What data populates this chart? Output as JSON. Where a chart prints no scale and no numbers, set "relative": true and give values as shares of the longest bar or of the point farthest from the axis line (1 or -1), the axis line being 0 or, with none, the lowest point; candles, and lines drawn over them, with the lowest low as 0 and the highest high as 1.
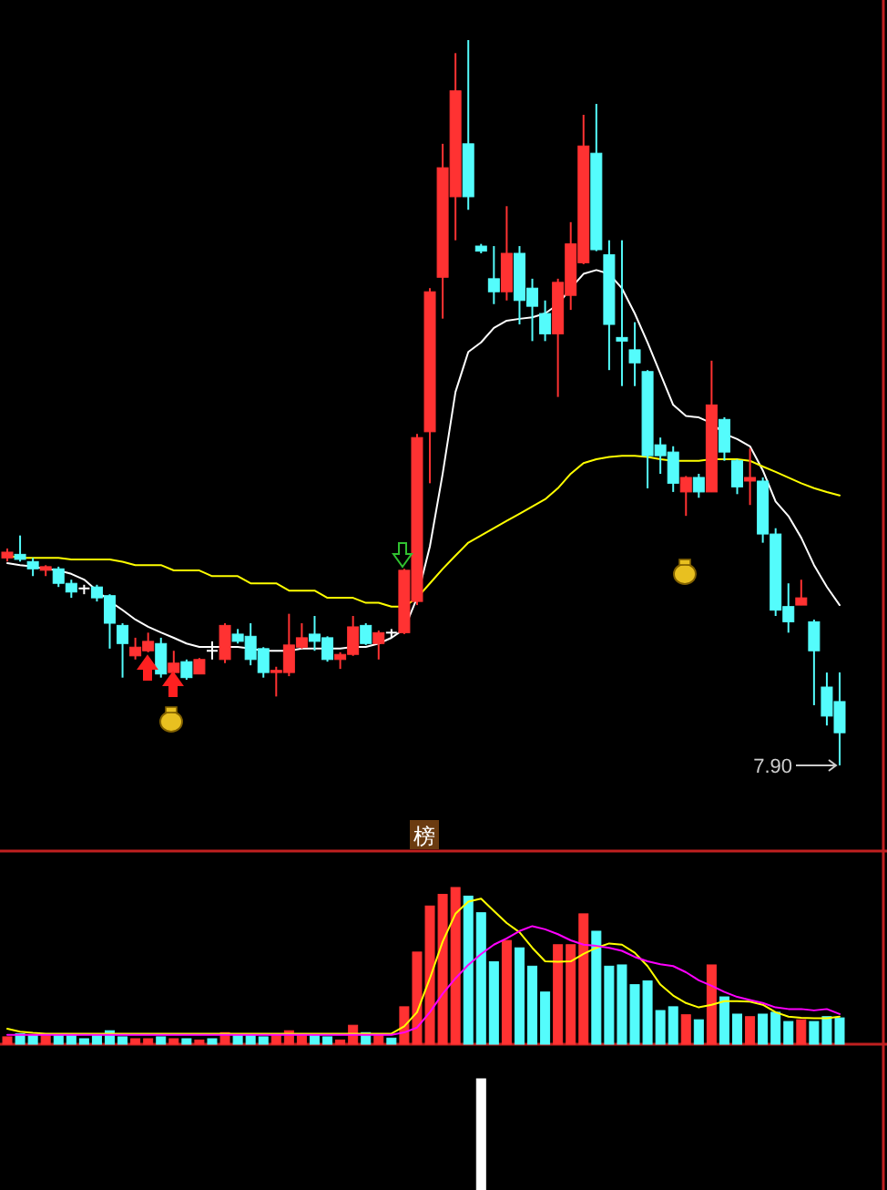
{
  "chart_data": [
    {
      "type": "candlestick",
      "relative": true,
      "categories": [
        null,
        null,
        null,
        null,
        null,
        null,
        null,
        null,
        null,
        null,
        null,
        null,
        null,
        null,
        null,
        null,
        null,
        null,
        null,
        null,
        null,
        null,
        null,
        null,
        null,
        null,
        null,
        null,
        null,
        null,
        null,
        null,
        null,
        null,
        null,
        null,
        null,
        null,
        null,
        null,
        null,
        null,
        null,
        null,
        null,
        null,
        null,
        null,
        null,
        null,
        null,
        null,
        null,
        null,
        null,
        null,
        null,
        null,
        null,
        null,
        null,
        null,
        null,
        null,
        null,
        null
      ],
      "ohlc": [
        [
          0.286,
          0.299,
          0.281,
          0.294
        ],
        [
          0.291,
          0.317,
          0.281,
          0.284
        ],
        [
          0.281,
          0.286,
          0.261,
          0.271
        ],
        [
          0.269,
          0.276,
          0.261,
          0.274
        ],
        [
          0.271,
          0.274,
          0.246,
          0.251
        ],
        [
          0.251,
          0.256,
          0.231,
          0.239
        ],
        [
          0.244,
          0.249,
          0.236,
          0.244
        ],
        [
          0.246,
          0.249,
          0.226,
          0.231
        ],
        [
          0.234,
          0.236,
          0.161,
          0.196
        ],
        [
          0.193,
          0.196,
          0.121,
          0.168
        ],
        [
          0.151,
          0.176,
          0.146,
          0.163
        ],
        [
          0.158,
          0.183,
          0.156,
          0.171
        ],
        [
          0.168,
          0.176,
          0.121,
          0.126
        ],
        [
          0.128,
          0.158,
          0.126,
          0.141
        ],
        [
          0.143,
          0.146,
          0.118,
          0.121
        ],
        [
          0.126,
          0.148,
          0.126,
          0.146
        ],
        [
          0.158,
          0.171,
          0.146,
          0.158
        ],
        [
          0.146,
          0.196,
          0.141,
          0.193
        ],
        [
          0.181,
          0.188,
          0.168,
          0.171
        ],
        [
          0.178,
          0.196,
          0.138,
          0.146
        ],
        [
          0.161,
          0.163,
          0.121,
          0.128
        ],
        [
          0.128,
          0.136,
          0.095,
          0.131
        ],
        [
          0.128,
          0.209,
          0.123,
          0.166
        ],
        [
          0.163,
          0.196,
          0.161,
          0.176
        ],
        [
          0.181,
          0.206,
          0.158,
          0.171
        ],
        [
          0.176,
          0.178,
          0.143,
          0.146
        ],
        [
          0.146,
          0.156,
          0.133,
          0.153
        ],
        [
          0.153,
          0.206,
          0.151,
          0.191
        ],
        [
          0.193,
          0.196,
          0.166,
          0.168
        ],
        [
          0.168,
          0.186,
          0.146,
          0.183
        ],
        [
          0.183,
          0.188,
          0.176,
          0.183
        ],
        [
          0.183,
          0.271,
          0.181,
          0.269
        ],
        [
          0.226,
          0.457,
          0.221,
          0.452
        ],
        [
          0.46,
          0.658,
          0.389,
          0.653
        ],
        [
          0.673,
          0.857,
          0.616,
          0.824
        ],
        [
          0.784,
          0.982,
          0.724,
          0.93
        ],
        [
          0.857,
          1,
          0.766,
          0.784
        ],
        [
          0.716,
          0.719,
          0.706,
          0.709
        ],
        [
          0.671,
          0.716,
          0.636,
          0.653
        ],
        [
          0.653,
          0.771,
          0.641,
          0.706
        ],
        [
          0.706,
          0.716,
          0.608,
          0.641
        ],
        [
          0.658,
          0.671,
          0.585,
          0.633
        ],
        [
          0.623,
          0.641,
          0.585,
          0.595
        ],
        [
          0.595,
          0.671,
          0.508,
          0.666
        ],
        [
          0.648,
          0.749,
          0.628,
          0.719
        ],
        [
          0.693,
          0.897,
          0.691,
          0.854
        ],
        [
          0.844,
          0.912,
          0.709,
          0.711
        ],
        [
          0.704,
          0.724,
          0.545,
          0.608
        ],
        [
          0.59,
          0.724,
          0.523,
          0.585
        ],
        [
          0.573,
          0.611,
          0.523,
          0.555
        ],
        [
          0.543,
          0.545,
          0.382,
          0.427
        ],
        [
          0.442,
          0.452,
          0.402,
          0.427
        ],
        [
          0.432,
          0.44,
          0.377,
          0.389
        ],
        [
          0.377,
          0.399,
          0.344,
          0.397
        ],
        [
          0.397,
          0.402,
          0.369,
          0.377
        ],
        [
          0.377,
          0.558,
          0.377,
          0.497
        ],
        [
          0.477,
          0.48,
          0.42,
          0.432
        ],
        [
          0.42,
          0.422,
          0.374,
          0.384
        ],
        [
          0.392,
          0.437,
          0.359,
          0.397
        ],
        [
          0.392,
          0.397,
          0.307,
          0.319
        ],
        [
          0.319,
          0.327,
          0.206,
          0.214
        ],
        [
          0.219,
          0.251,
          0.183,
          0.198
        ],
        [
          0.221,
          0.256,
          0.221,
          0.231
        ],
        [
          0.198,
          0.201,
          0.083,
          0.158
        ],
        [
          0.108,
          0.128,
          0.055,
          0.068
        ],
        [
          0.088,
          0.128,
          0,
          0.045
        ]
      ],
      "annotations": [
        "7.90",
        "榜"
      ]
    },
    {
      "type": "line",
      "relative": true,
      "categories": [
        null,
        null,
        null,
        null,
        null,
        null,
        null,
        null,
        null,
        null,
        null,
        null,
        null,
        null,
        null,
        null,
        null,
        null,
        null,
        null,
        null,
        null,
        null,
        null,
        null,
        null,
        null,
        null,
        null,
        null,
        null,
        null,
        null,
        null,
        null,
        null,
        null,
        null,
        null,
        null,
        null,
        null,
        null,
        null,
        null,
        null,
        null,
        null,
        null,
        null,
        null,
        null,
        null,
        null,
        null,
        null,
        null,
        null,
        null,
        null,
        null,
        null,
        null,
        null,
        null,
        null
      ],
      "series": [
        {
          "color": "#ffffff",
          "values": [
            0.23,
            0.225,
            0.221,
            0.215,
            0.211,
            0.202,
            0.187,
            0.158,
            0.13,
            0.107,
            0.082,
            0.063,
            0.048,
            0.034,
            0.019,
            0.01,
            0.01,
            0.01,
            0.01,
            0.006,
            0,
            0,
            0,
            0.006,
            0.006,
            0.006,
            0.006,
            0.01,
            0.01,
            0.019,
            0.034,
            0.057,
            0.139,
            0.274,
            0.465,
            0.68,
            0.785,
            0.81,
            0.848,
            0.867,
            0.872,
            0.876,
            0.886,
            0.91,
            0.952,
            0.99,
            1,
            0.99,
            0.952,
            0.886,
            0.81,
            0.728,
            0.646,
            0.617,
            0.613,
            0.598,
            0.57,
            0.556,
            0.537,
            0.474,
            0.392,
            0.354,
            0.297,
            0.225,
            0.168,
            0.12
          ]
        },
        {
          "color": "#ffff00",
          "values": [
            0.25,
            0.244,
            0.244,
            0.244,
            0.244,
            0.24,
            0.24,
            0.24,
            0.24,
            0.234,
            0.225,
            0.225,
            0.225,
            0.211,
            0.211,
            0.211,
            0.196,
            0.196,
            0.196,
            0.177,
            0.177,
            0.177,
            0.158,
            0.158,
            0.158,
            0.139,
            0.139,
            0.139,
            0.126,
            0.126,
            0.116,
            0.116,
            0.139,
            0.177,
            0.215,
            0.25,
            0.284,
            0.303,
            0.322,
            0.341,
            0.36,
            0.379,
            0.398,
            0.427,
            0.465,
            0.493,
            0.503,
            0.509,
            0.512,
            0.512,
            0.509,
            0.503,
            0.499,
            0.499,
            0.499,
            0.503,
            0.503,
            0.503,
            0.499,
            0.484,
            0.47,
            0.455,
            0.44,
            0.427,
            0.417,
            0.408
          ]
        }
      ]
    },
    {
      "type": "bar",
      "relative": true,
      "categories": [
        null,
        null,
        null,
        null,
        null,
        null,
        null,
        null,
        null,
        null,
        null,
        null,
        null,
        null,
        null,
        null,
        null,
        null,
        null,
        null,
        null,
        null,
        null,
        null,
        null,
        null,
        null,
        null,
        null,
        null,
        null,
        null,
        null,
        null,
        null,
        null,
        null,
        null,
        null,
        null,
        null,
        null,
        null,
        null,
        null,
        null,
        null,
        null,
        null,
        null,
        null,
        null,
        null,
        null,
        null,
        null,
        null,
        null,
        null,
        null,
        null,
        null,
        null,
        null,
        null,
        null
      ],
      "series": [
        {
          "type": "bar",
          "colors": [
            "#ff3232",
            "#54fcfc",
            "#54fcfc",
            "#ff3232",
            "#54fcfc",
            "#54fcfc",
            "#54fcfc",
            "#54fcfc",
            "#54fcfc",
            "#54fcfc",
            "#ff3232",
            "#ff3232",
            "#54fcfc",
            "#ff3232",
            "#54fcfc",
            "#ff3232",
            "#54fcfc",
            "#ff3232",
            "#54fcfc",
            "#54fcfc",
            "#54fcfc",
            "#ff3232",
            "#ff3232",
            "#ff3232",
            "#54fcfc",
            "#54fcfc",
            "#ff3232",
            "#ff3232",
            "#54fcfc",
            "#ff3232",
            "#54fcfc",
            "#ff3232",
            "#ff3232",
            "#ff3232",
            "#ff3232",
            "#ff3232",
            "#54fcfc",
            "#54fcfc",
            "#54fcfc",
            "#ff3232",
            "#54fcfc",
            "#54fcfc",
            "#54fcfc",
            "#ff3232",
            "#ff3232",
            "#ff3232",
            "#54fcfc",
            "#54fcfc",
            "#54fcfc",
            "#54fcfc",
            "#54fcfc",
            "#54fcfc",
            "#54fcfc",
            "#ff3232",
            "#54fcfc",
            "#ff3232",
            "#54fcfc",
            "#54fcfc",
            "#ff3232",
            "#54fcfc",
            "#54fcfc",
            "#54fcfc",
            "#ff3232",
            "#54fcfc",
            "#54fcfc",
            "#54fcfc"
          ],
          "values": [
            0.047,
            0.067,
            0.059,
            0.055,
            0.059,
            0.059,
            0.035,
            0.055,
            0.086,
            0.047,
            0.035,
            0.035,
            0.047,
            0.035,
            0.035,
            0.027,
            0.035,
            0.074,
            0.055,
            0.062,
            0.047,
            0.055,
            0.086,
            0.055,
            0.055,
            0.047,
            0.027,
            0.121,
            0.074,
            0.059,
            0.039,
            0.239,
            0.588,
            0.882,
            0.956,
            1,
            0.945,
            0.839,
            0.526,
            0.662,
            0.615,
            0.498,
            0.333,
            0.635,
            0.635,
            0.832,
            0.721,
            0.498,
            0.506,
            0.38,
            0.404,
            0.215,
            0.239,
            0.188,
            0.156,
            0.506,
            0.302,
            0.192,
            0.176,
            0.192,
            0.204,
            0.145,
            0.156,
            0.145,
            0.176,
            0.168
          ]
        }
      ]
    },
    {
      "type": "line",
      "relative": true,
      "categories": [
        null,
        null,
        null,
        null,
        null,
        null,
        null,
        null,
        null,
        null,
        null,
        null,
        null,
        null,
        null,
        null,
        null,
        null,
        null,
        null,
        null,
        null,
        null,
        null,
        null,
        null,
        null,
        null,
        null,
        null,
        null,
        null,
        null,
        null,
        null,
        null,
        null,
        null,
        null,
        null,
        null,
        null,
        null,
        null,
        null,
        null,
        null,
        null,
        null,
        null,
        null,
        null,
        null,
        null,
        null,
        null,
        null,
        null,
        null,
        null,
        null,
        null,
        null,
        null,
        null,
        null
      ],
      "series": [
        {
          "color": "#ffff00",
          "values": [
            0.045,
            0.024,
            0.015,
            0.009,
            0.009,
            0.009,
            0.009,
            0.009,
            0.009,
            0.009,
            0.009,
            0.009,
            0.009,
            0.009,
            0.009,
            0.009,
            0.009,
            0.009,
            0.009,
            0.009,
            0.009,
            0.009,
            0.009,
            0.009,
            0.009,
            0.009,
            0.009,
            0.009,
            0.009,
            0.009,
            0.009,
            0.063,
            0.167,
            0.415,
            0.685,
            0.889,
            0.978,
            1,
            0.91,
            0.821,
            0.753,
            0.639,
            0.54,
            0.536,
            0.54,
            0.594,
            0.639,
            0.671,
            0.662,
            0.603,
            0.505,
            0.369,
            0.289,
            0.234,
            0.202,
            0.221,
            0.248,
            0.248,
            0.244,
            0.221,
            0.167,
            0.134,
            0.126,
            0.122,
            0.122,
            0.134
          ]
        },
        {
          "color": "#ff00ff",
          "values": [
            0,
            0,
            0,
            0,
            0,
            0,
            0,
            0,
            0,
            0,
            0,
            0,
            0,
            0,
            0,
            0,
            0,
            0,
            0,
            0,
            0,
            0,
            0,
            0,
            0,
            0,
            0,
            0,
            0,
            0,
            0,
            0.018,
            0.054,
            0.167,
            0.302,
            0.415,
            0.514,
            0.594,
            0.662,
            0.708,
            0.762,
            0.798,
            0.775,
            0.739,
            0.694,
            0.662,
            0.653,
            0.639,
            0.617,
            0.572,
            0.54,
            0.518,
            0.505,
            0.46,
            0.401,
            0.361,
            0.315,
            0.279,
            0.256,
            0.234,
            0.202,
            0.19,
            0.19,
            0.18,
            0.19,
            0.153
          ]
        }
      ]
    },
    {
      "type": "bar",
      "relative": true,
      "categories": [
        null,
        null,
        null,
        null,
        null,
        null,
        null,
        null,
        null,
        null,
        null,
        null,
        null,
        null,
        null,
        null,
        null,
        null,
        null,
        null,
        null,
        null,
        null,
        null,
        null,
        null,
        null,
        null,
        null,
        null,
        null,
        null,
        null,
        null,
        null,
        null,
        null,
        null,
        null,
        null,
        null,
        null,
        null,
        null,
        null,
        null,
        null,
        null,
        null,
        null,
        null,
        null,
        null,
        null,
        null,
        null,
        null,
        null,
        null,
        null,
        null,
        null,
        null,
        null,
        null,
        null
      ],
      "series": [
        {
          "type": "bar",
          "color": "#ffffff",
          "values": [
            null,
            null,
            null,
            null,
            null,
            null,
            null,
            null,
            null,
            null,
            null,
            null,
            null,
            null,
            null,
            null,
            null,
            null,
            null,
            null,
            null,
            null,
            null,
            null,
            null,
            null,
            null,
            null,
            null,
            null,
            null,
            null,
            null,
            null,
            null,
            null,
            null,
            1,
            null,
            null,
            null,
            null,
            null,
            null,
            null,
            null,
            null,
            null,
            null,
            null,
            null,
            null,
            null,
            null,
            null,
            null,
            null,
            null,
            null,
            null,
            null,
            null,
            null,
            null,
            null,
            null
          ]
        }
      ]
    }
  ]
}
